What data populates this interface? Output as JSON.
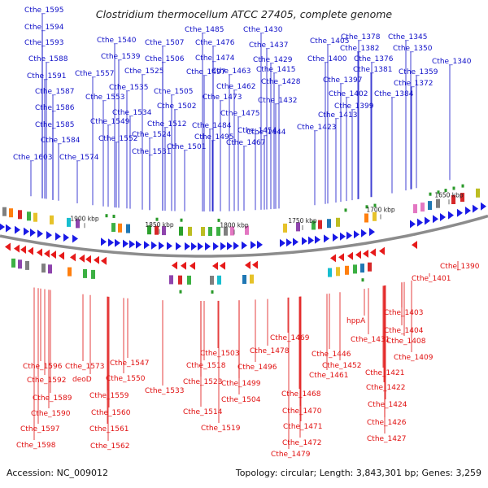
{
  "title": "Clostridium thermocellum ATCC 27405, complete genome",
  "accession_text": "Accession: NC_009012",
  "topology_text": "Topology: circular; Length: 3,843,301 bp; Genes: 3,259",
  "colors": {
    "forward_label": "#1010c8",
    "reverse_label": "#e01010",
    "forward_gene": "#1a1ae6",
    "reverse_gene": "#e61a1a",
    "backbone": "#8c8c8c",
    "tick_mark": "#2a9a2a"
  },
  "ticks": [
    "1650 kbp",
    "1700 kbp",
    "1750 kbp",
    "1800 kbp",
    "1850 kbp",
    "1900 kbp"
  ],
  "forward_labels": [
    "Cthe_1595",
    "Cthe_1594",
    "Cthe_1593",
    "Cthe_1588",
    "Cthe_1591",
    "Cthe_1587",
    "Cthe_1586",
    "Cthe_1585",
    "Cthe_1584",
    "Cthe_1603",
    "Cthe_1574",
    "Cthe_1540",
    "Cthe_1539",
    "Cthe_1557",
    "Cthe_1553",
    "Cthe_1535",
    "Cthe_1534",
    "Cthe_1549",
    "Cthe_1552",
    "Cthe_1531",
    "Cthe_1507",
    "Cthe_1506",
    "Cthe_1525",
    "Cthe_1505",
    "Cthe_1502",
    "Cthe_1512",
    "Cthe_1524",
    "Cthe_1501",
    "Cthe_1485",
    "Cthe_1476",
    "Cthe_1474",
    "Cthe_1497",
    "Cthe_1463",
    "Cthe_1462",
    "Cthe_1473",
    "Cthe_1484",
    "Cthe_1495",
    "Cthe_1475",
    "Cthe_1467",
    "Cthe_1430",
    "Cthe_1437",
    "Cthe_1429",
    "Cthe_1415",
    "Cthe_1428",
    "Cthe_1432",
    "Cthe_1444",
    "Cthe_1454",
    "Cthe_1405",
    "Cthe_1400",
    "Cthe_1413",
    "Cthe_1423",
    "Cthe_1397",
    "Cthe_1402",
    "Cthe_1399",
    "Cthe_1378",
    "Cthe_1382",
    "Cthe_1376",
    "Cthe_1381",
    "Cthe_1384",
    "Cthe_1345",
    "Cthe_1350",
    "Cthe_1340",
    "Cthe_1359",
    "Cthe_1372"
  ],
  "reverse_labels": [
    "Cthe_1596",
    "Cthe_1592",
    "Cthe_1589",
    "Cthe_1590",
    "Cthe_1597",
    "Cthe_1598",
    "Cthe_1573",
    "deoD",
    "Cthe_1547",
    "Cthe_1550",
    "Cthe_1559",
    "Cthe_1560",
    "Cthe_1561",
    "Cthe_1562",
    "Cthe_1518",
    "Cthe_1523",
    "Cthe_1533",
    "Cthe_1514",
    "Cthe_1519",
    "Cthe_1503",
    "Cthe_1496",
    "Cthe_1499",
    "Cthe_1504",
    "Cthe_1469",
    "Cthe_1478",
    "Cthe_1461",
    "Cthe_1468",
    "Cthe_1470",
    "Cthe_1471",
    "Cthe_1472",
    "Cthe_1479",
    "Cthe_1446",
    "Cthe_1452",
    "hppA",
    "Cthe_1431",
    "Cthe_1390",
    "Cthe_1401",
    "Cthe_1403",
    "Cthe_1404",
    "Cthe_1408",
    "Cthe_1409",
    "Cthe_1421",
    "Cthe_1422",
    "Cthe_1424",
    "Cthe_1426",
    "Cthe_1427"
  ]
}
